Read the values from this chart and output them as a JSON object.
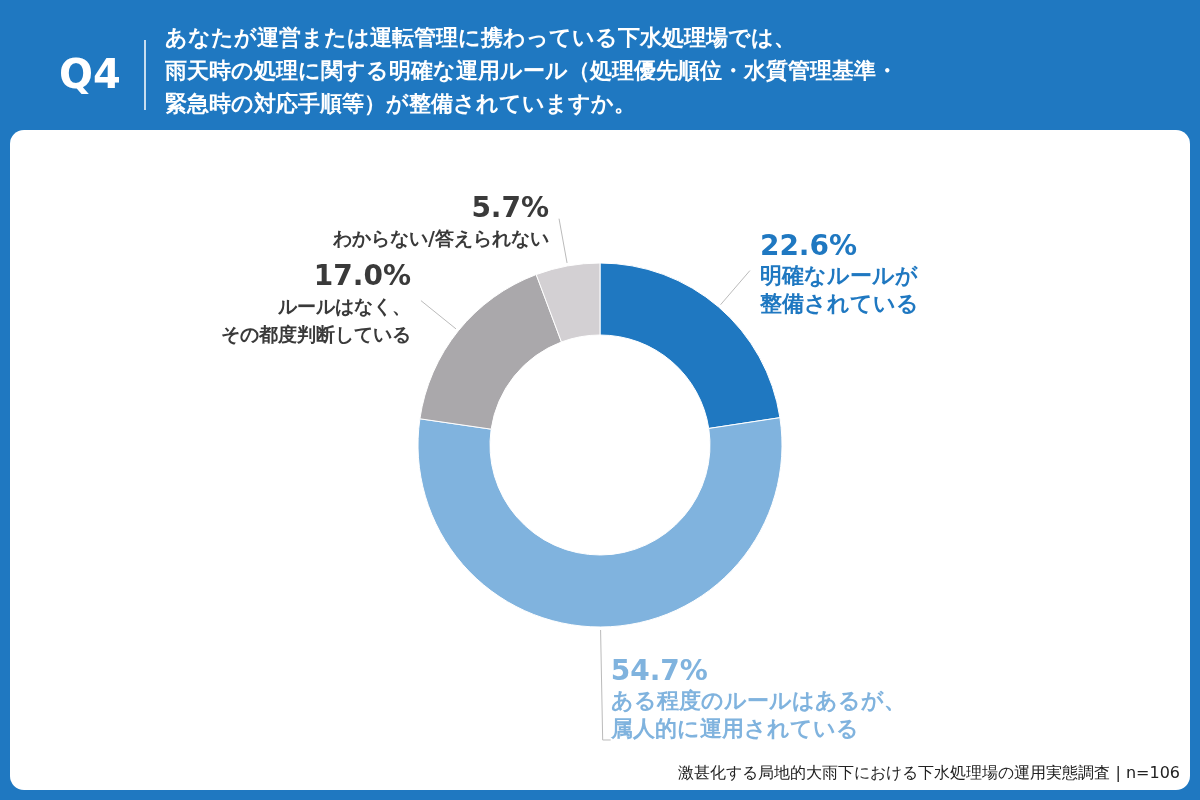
{
  "chart_data": {
    "type": "donut",
    "title": "Q4",
    "subtitle": "あなたが運営または運転管理に携わっている下水処理場では、雨天時の処理に関する明確な運用ルール（処理優先順位・水質管理基準・緊急時の対応手順等）が整備されていますか。",
    "categories": [
      "明確なルールが整備されている",
      "ある程度のルールはあるが、属人的に運用されている",
      "ルールはなく、その都度判断している",
      "わからない/答えられない"
    ],
    "values": [
      22.6,
      54.7,
      17.0,
      5.7
    ],
    "value_labels": [
      "22.6%",
      "54.7%",
      "17.0%",
      "5.7%"
    ],
    "colors": [
      "#1f78c1",
      "#80b3de",
      "#aaa8ab",
      "#d3d0d3"
    ],
    "annotations": [
      "激甚化する局地的大雨下における下水処理場の運用実態調査 | n=106"
    ]
  }
}
